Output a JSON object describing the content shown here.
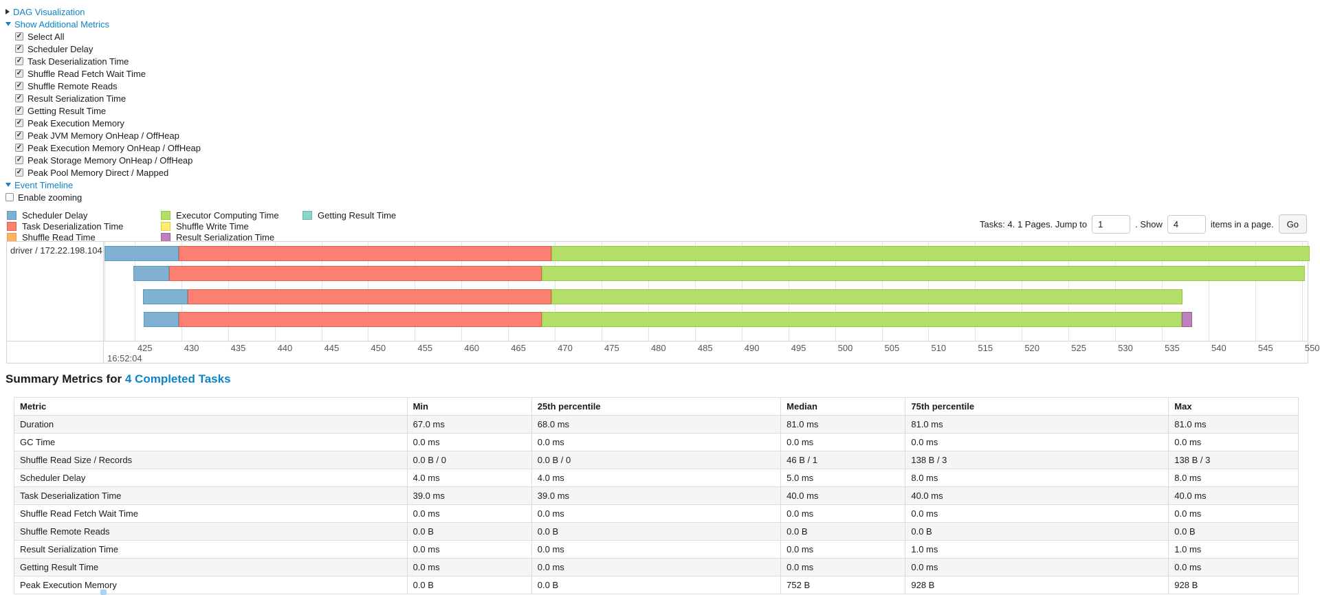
{
  "sections": {
    "dag": {
      "label": "DAG Visualization"
    },
    "metrics_toggle": {
      "label": "Show Additional Metrics"
    },
    "event_timeline": {
      "label": "Event Timeline"
    },
    "enable_zooming": {
      "label": "Enable zooming",
      "checked": false
    }
  },
  "metrics_panel": {
    "items": [
      {
        "label": "Select All",
        "checked": true
      },
      {
        "label": "Scheduler Delay",
        "checked": true
      },
      {
        "label": "Task Deserialization Time",
        "checked": true
      },
      {
        "label": "Shuffle Read Fetch Wait Time",
        "checked": true
      },
      {
        "label": "Shuffle Remote Reads",
        "checked": true
      },
      {
        "label": "Result Serialization Time",
        "checked": true
      },
      {
        "label": "Getting Result Time",
        "checked": true
      },
      {
        "label": "Peak Execution Memory",
        "checked": true
      },
      {
        "label": "Peak JVM Memory OnHeap / OffHeap",
        "checked": true
      },
      {
        "label": "Peak Execution Memory OnHeap / OffHeap",
        "checked": true
      },
      {
        "label": "Peak Storage Memory OnHeap / OffHeap",
        "checked": true
      },
      {
        "label": "Peak Pool Memory Direct / Mapped",
        "checked": true
      }
    ]
  },
  "pagination": {
    "info": "Tasks: 4. 1 Pages. Jump to",
    "jump_value": "1",
    "show_label": ". Show",
    "show_value": "4",
    "items_label": "items in a page.",
    "go_label": "Go"
  },
  "chart_data": {
    "type": "timeline",
    "group_label": "driver / 172.22.198.104",
    "x_axis": {
      "unit": "milliseconds within second",
      "range": [
        421.7,
        550.6
      ],
      "ticks": [
        425,
        430,
        435,
        440,
        445,
        450,
        455,
        460,
        465,
        470,
        475,
        480,
        485,
        490,
        495,
        500,
        505,
        510,
        515,
        520,
        525,
        530,
        535,
        540,
        545,
        550
      ],
      "major_label": "16:52:04"
    },
    "colors": {
      "scheduler_delay": {
        "fill": "#80B1D3",
        "border": "#5E97C2"
      },
      "task_deserialization": {
        "fill": "#FB8072",
        "border": "#E0604F"
      },
      "shuffle_read": {
        "fill": "#FDB462",
        "border": "#EC9B3F"
      },
      "executor_computing": {
        "fill": "#B3DE69",
        "border": "#96C93F"
      },
      "shuffle_write": {
        "fill": "#FFED6F",
        "border": "#E0CE45"
      },
      "result_serialization": {
        "fill": "#BC80BD",
        "border": "#9E5BA0"
      },
      "getting_result": {
        "fill": "#8DD3C7",
        "border": "#66BBAB"
      }
    },
    "legend_columns": [
      [
        {
          "label": "Scheduler Delay",
          "type": "scheduler_delay"
        },
        {
          "label": "Task Deserialization Time",
          "type": "task_deserialization"
        },
        {
          "label": "Shuffle Read Time",
          "type": "shuffle_read"
        }
      ],
      [
        {
          "label": "Executor Computing Time",
          "type": "executor_computing"
        },
        {
          "label": "Shuffle Write Time",
          "type": "shuffle_write"
        },
        {
          "label": "Result Serialization Time",
          "type": "result_serialization"
        }
      ],
      [
        {
          "label": "Getting Result Time",
          "type": "getting_result"
        }
      ]
    ],
    "tasks": [
      {
        "segments": [
          {
            "type": "scheduler_delay",
            "start": 421.8,
            "end": 429.7
          },
          {
            "type": "task_deserialization",
            "start": 429.7,
            "end": 469.6
          },
          {
            "type": "executor_computing",
            "start": 469.6,
            "end": 550.8
          }
        ]
      },
      {
        "segments": [
          {
            "type": "scheduler_delay",
            "start": 424.9,
            "end": 428.7
          },
          {
            "type": "task_deserialization",
            "start": 428.7,
            "end": 468.6
          },
          {
            "type": "executor_computing",
            "start": 468.6,
            "end": 550.3
          }
        ]
      },
      {
        "segments": [
          {
            "type": "scheduler_delay",
            "start": 425.9,
            "end": 430.7
          },
          {
            "type": "task_deserialization",
            "start": 430.7,
            "end": 469.6
          },
          {
            "type": "executor_computing",
            "start": 469.6,
            "end": 537.2
          }
        ]
      },
      {
        "segments": [
          {
            "type": "scheduler_delay",
            "start": 426.0,
            "end": 429.7
          },
          {
            "type": "task_deserialization",
            "start": 429.7,
            "end": 468.6
          },
          {
            "type": "executor_computing",
            "start": 468.6,
            "end": 537.1
          },
          {
            "type": "result_serialization",
            "start": 537.1,
            "end": 538.2
          }
        ]
      }
    ]
  },
  "summary": {
    "title_prefix": "Summary Metrics for",
    "title_link": "4 Completed Tasks",
    "columns": [
      "Metric",
      "Min",
      "25th percentile",
      "Median",
      "75th percentile",
      "Max"
    ],
    "rows": [
      {
        "metric": "Duration",
        "values": [
          "67.0 ms",
          "68.0 ms",
          "81.0 ms",
          "81.0 ms",
          "81.0 ms"
        ]
      },
      {
        "metric": "GC Time",
        "values": [
          "0.0 ms",
          "0.0 ms",
          "0.0 ms",
          "0.0 ms",
          "0.0 ms"
        ]
      },
      {
        "metric": "Shuffle Read Size / Records",
        "values": [
          "0.0 B / 0",
          "0.0 B / 0",
          "46 B / 1",
          "138 B / 3",
          "138 B / 3"
        ]
      },
      {
        "metric": "Scheduler Delay",
        "values": [
          "4.0 ms",
          "4.0 ms",
          "5.0 ms",
          "8.0 ms",
          "8.0 ms"
        ]
      },
      {
        "metric": "Task Deserialization Time",
        "values": [
          "39.0 ms",
          "39.0 ms",
          "40.0 ms",
          "40.0 ms",
          "40.0 ms"
        ]
      },
      {
        "metric": "Shuffle Read Fetch Wait Time",
        "values": [
          "0.0 ms",
          "0.0 ms",
          "0.0 ms",
          "0.0 ms",
          "0.0 ms"
        ]
      },
      {
        "metric": "Shuffle Remote Reads",
        "values": [
          "0.0 B",
          "0.0 B",
          "0.0 B",
          "0.0 B",
          "0.0 B"
        ]
      },
      {
        "metric": "Result Serialization Time",
        "values": [
          "0.0 ms",
          "0.0 ms",
          "0.0 ms",
          "1.0 ms",
          "1.0 ms"
        ]
      },
      {
        "metric": "Getting Result Time",
        "values": [
          "0.0 ms",
          "0.0 ms",
          "0.0 ms",
          "0.0 ms",
          "0.0 ms"
        ]
      },
      {
        "metric": "Peak Execution Memory",
        "values": [
          "0.0 B",
          "0.0 B",
          "752 B",
          "928 B",
          "928 B"
        ]
      }
    ]
  }
}
